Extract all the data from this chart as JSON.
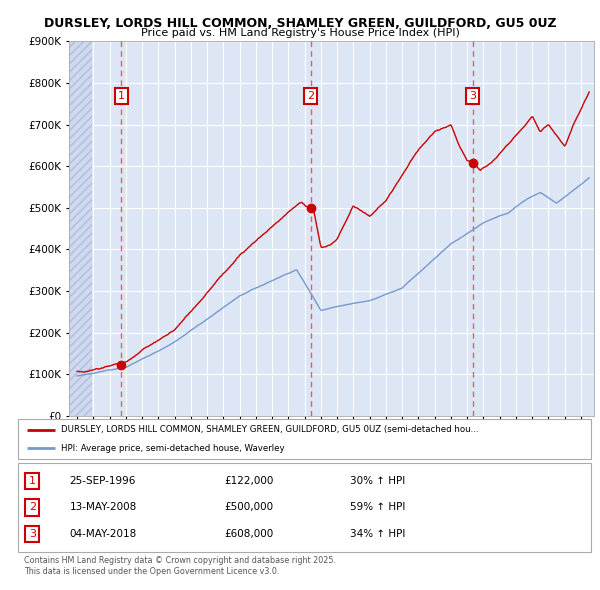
{
  "title_line1": "DURSLEY, LORDS HILL COMMON, SHAMLEY GREEN, GUILDFORD, GU5 0UZ",
  "title_line2": "Price paid vs. HM Land Registry's House Price Index (HPI)",
  "background_color": "#ffffff",
  "plot_bg_color": "#dce6f5",
  "grid_color": "#ffffff",
  "sale_color": "#cc0000",
  "hpi_color": "#7799cc",
  "dashed_line_color": "#ee4444",
  "ylim_max": 900000,
  "ylim_min": 0,
  "sale_dates": [
    1996.73,
    2008.37,
    2018.34
  ],
  "sale_prices": [
    122000,
    500000,
    608000
  ],
  "sale_labels": [
    "1",
    "2",
    "3"
  ],
  "sale_date_strs": [
    "25-SEP-1996",
    "13-MAY-2008",
    "04-MAY-2018"
  ],
  "sale_price_strs": [
    "£122,000",
    "£500,000",
    "£608,000"
  ],
  "sale_hpi_strs": [
    "30% ↑ HPI",
    "59% ↑ HPI",
    "34% ↑ HPI"
  ],
  "legend_line1": "DURSLEY, LORDS HILL COMMON, SHAMLEY GREEN, GUILDFORD, GU5 0UZ (semi-detached hou...",
  "legend_line2": "HPI: Average price, semi-detached house, Waverley",
  "footer": "Contains HM Land Registry data © Crown copyright and database right 2025.\nThis data is licensed under the Open Government Licence v3.0.",
  "xmin": 1993.5,
  "xmax": 2025.8,
  "hatch_xmax": 1994.92
}
